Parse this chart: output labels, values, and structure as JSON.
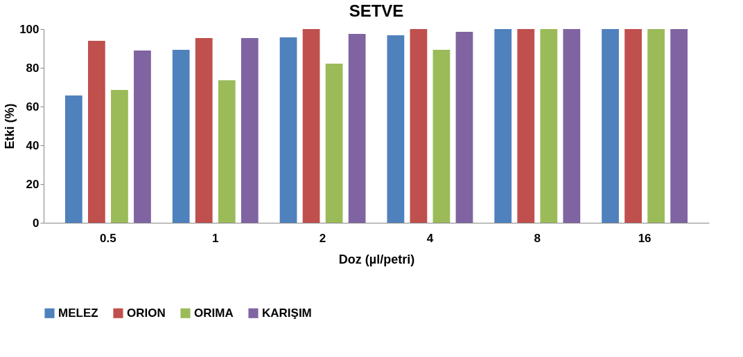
{
  "chart_data": {
    "type": "bar",
    "title": "SETVE",
    "xlabel": "Doz (µl/petri)",
    "ylabel": "Etki (%)",
    "categories": [
      "0.5",
      "1",
      "2",
      "4",
      "8",
      "16"
    ],
    "series": [
      {
        "name": "MELEZ",
        "color": "#4f81bd",
        "values": [
          65.7,
          89.3,
          95.7,
          96.8,
          100,
          100
        ]
      },
      {
        "name": "ORION",
        "color": "#c0504d",
        "values": [
          93.9,
          95.4,
          100,
          100,
          100,
          100
        ]
      },
      {
        "name": "ORIMA",
        "color": "#9bbb59",
        "values": [
          68.6,
          73.6,
          82.1,
          89.3,
          100,
          100
        ]
      },
      {
        "name": "KARIŞIM",
        "color": "#8064a2",
        "values": [
          88.9,
          95.4,
          97.5,
          98.6,
          100,
          100
        ]
      }
    ],
    "ylim": [
      0,
      100
    ],
    "yticks": [
      0,
      20,
      40,
      60,
      80,
      100
    ],
    "grid": false,
    "legend": "bottom"
  }
}
